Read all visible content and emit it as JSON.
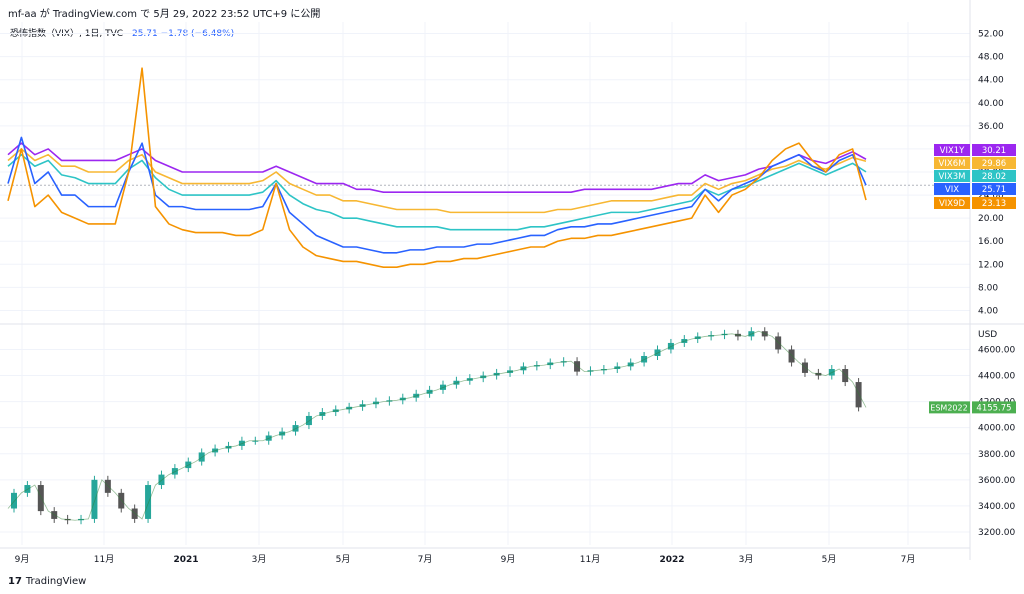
{
  "header": {
    "text": "mf-aa が TradingView.com で 5月 29, 2022 23:52 UTC+9 に公開"
  },
  "legend": {
    "title": "恐怖指数（VIX）, 1日, TVC",
    "values": "25.71  −1.78 (−6.48%)"
  },
  "footer": {
    "logo": "17",
    "brand": "TradingView"
  },
  "colors": {
    "VIX1Y": "#9c27f0",
    "VIX6M": "#f7b733",
    "VIX3M": "#2ec4c6",
    "VIX": "#2962ff",
    "VIX9D": "#f59300",
    "ES_up": "#26a69a",
    "ES_down": "#555555",
    "ES_label": "#4caf50"
  },
  "chart_data": [
    {
      "type": "line",
      "title": "恐怖指数（VIX）, 1日, TVC",
      "ylim": [
        2,
        54
      ],
      "y_ticks": [
        "52.00",
        "48.00",
        "44.00",
        "40.00",
        "36.00",
        "32.00",
        "28.00",
        "24.00",
        "20.00",
        "16.00",
        "12.00",
        "8.00",
        "4.00"
      ],
      "x": [
        0,
        10,
        20,
        30,
        40,
        50,
        60,
        70,
        80,
        90,
        100,
        110,
        120,
        130,
        140,
        150,
        160,
        170,
        180,
        190,
        200,
        210,
        220,
        230,
        240,
        250,
        260,
        270,
        280,
        290,
        300,
        310,
        320,
        330,
        340,
        350,
        360,
        370,
        380,
        390,
        400,
        410,
        420,
        430,
        440,
        450,
        460,
        470,
        480,
        490,
        500,
        510,
        520,
        530,
        540,
        550,
        560,
        570,
        580,
        590,
        600,
        610,
        620,
        630,
        640
      ],
      "series": [
        {
          "name": "VIX1Y",
          "last": "30.21",
          "values": [
            31,
            33,
            31,
            32,
            30,
            30,
            30,
            30,
            30,
            31,
            32,
            30,
            29,
            28,
            28,
            28,
            28,
            28,
            28,
            28,
            29,
            28,
            27,
            26,
            26,
            26,
            25,
            25,
            24.5,
            24.5,
            24.5,
            24.5,
            24.5,
            24.5,
            24.5,
            24.5,
            24.5,
            24.5,
            24.5,
            24.5,
            24.5,
            24.5,
            24.5,
            25,
            25,
            25,
            25,
            25,
            25,
            25.5,
            26,
            26,
            27.5,
            26.5,
            27,
            27.5,
            28.5,
            29,
            30,
            31,
            30,
            29.5,
            30.5,
            31.5,
            30.21
          ]
        },
        {
          "name": "VIX6M",
          "last": "29.86",
          "values": [
            30,
            32,
            30,
            31,
            29,
            29,
            28,
            28,
            28,
            30,
            31,
            28,
            27,
            26,
            26,
            26,
            26,
            26,
            26,
            26.5,
            28,
            26,
            25,
            24,
            24,
            23,
            23,
            22.5,
            22,
            21.5,
            21.5,
            21.5,
            21.5,
            21,
            21,
            21,
            21,
            21,
            21,
            21,
            21,
            21.5,
            21.5,
            22,
            22.5,
            23,
            23,
            23,
            23,
            23.5,
            24,
            24,
            26,
            25,
            26,
            26.5,
            27.5,
            28.5,
            29,
            30,
            29,
            28.5,
            29.5,
            30.5,
            29.86
          ]
        },
        {
          "name": "VIX3M",
          "last": "28.02",
          "values": [
            29,
            31,
            29,
            30,
            27.5,
            27,
            26,
            26,
            26,
            28.5,
            30,
            27,
            25,
            24,
            24,
            24,
            24,
            24,
            24,
            24.5,
            26.5,
            24,
            22.5,
            21.5,
            21,
            20,
            20,
            19.5,
            19,
            18.5,
            18.5,
            18.5,
            18.5,
            18,
            18,
            18,
            18,
            18,
            18,
            18.5,
            18.5,
            19,
            19.5,
            20,
            20.5,
            21,
            21,
            21,
            21.5,
            22,
            22.5,
            23,
            25,
            24,
            25,
            25.5,
            26.5,
            27.5,
            28.5,
            29.5,
            28.5,
            27.5,
            28.5,
            29.5,
            28.02
          ]
        },
        {
          "name": "VIX",
          "last": "25.71",
          "values": [
            26,
            34,
            26,
            28,
            24,
            24,
            22,
            22,
            22,
            28,
            33,
            24,
            22,
            22,
            21.5,
            21.5,
            21.5,
            21.5,
            21.5,
            22,
            26,
            21,
            19,
            17,
            16,
            15,
            15,
            14.5,
            14,
            14,
            14.5,
            14.5,
            15,
            15,
            15,
            15.5,
            15.5,
            16,
            16.5,
            17,
            17,
            18,
            18.5,
            18.5,
            19,
            19,
            19.5,
            20,
            20.5,
            21,
            21.5,
            22,
            25,
            23,
            25,
            26,
            27,
            29,
            30,
            31,
            29,
            28,
            30,
            31,
            25.71
          ]
        },
        {
          "name": "VIX9D",
          "last": "23.13",
          "values": [
            23,
            32,
            22,
            24,
            21,
            20,
            19,
            19,
            19,
            28,
            46,
            22,
            19,
            18,
            17.5,
            17.5,
            17.5,
            17,
            17,
            18,
            26,
            18,
            15,
            13.5,
            13,
            12.5,
            12.5,
            12,
            11.5,
            11.5,
            12,
            12,
            12.5,
            12.5,
            13,
            13,
            13.5,
            14,
            14.5,
            15,
            15,
            16,
            16.5,
            16.5,
            17,
            17,
            17.5,
            18,
            18.5,
            19,
            19.5,
            20,
            24,
            21,
            24,
            25,
            27,
            30,
            32,
            33,
            30,
            28,
            31,
            32,
            23.13
          ]
        }
      ]
    },
    {
      "type": "line",
      "title": "ESM2022",
      "last": "4155.75",
      "unit_label": "USD",
      "ylim": [
        3100,
        4780
      ],
      "y_ticks": [
        "4600.00",
        "4400.00",
        "4200.00",
        "4000.00",
        "3800.00",
        "3600.00",
        "3400.00",
        "3200.00"
      ],
      "x": [
        0,
        10,
        20,
        30,
        40,
        50,
        60,
        70,
        80,
        90,
        100,
        110,
        120,
        130,
        140,
        150,
        160,
        170,
        180,
        190,
        200,
        210,
        220,
        230,
        240,
        250,
        260,
        270,
        280,
        290,
        300,
        310,
        320,
        330,
        340,
        350,
        360,
        370,
        380,
        390,
        400,
        410,
        420,
        430,
        440,
        450,
        460,
        470,
        480,
        490,
        500,
        510,
        520,
        530,
        540,
        550,
        560,
        570,
        580,
        590,
        600,
        610,
        620,
        630,
        640
      ],
      "values": [
        3380,
        3500,
        3560,
        3360,
        3300,
        3290,
        3300,
        3600,
        3500,
        3380,
        3300,
        3560,
        3640,
        3690,
        3740,
        3810,
        3840,
        3860,
        3900,
        3900,
        3940,
        3970,
        4020,
        4090,
        4120,
        4140,
        4160,
        4180,
        4200,
        4210,
        4230,
        4260,
        4290,
        4330,
        4360,
        4380,
        4400,
        4420,
        4440,
        4470,
        4480,
        4500,
        4510,
        4430,
        4440,
        4450,
        4470,
        4500,
        4550,
        4600,
        4650,
        4680,
        4700,
        4710,
        4720,
        4700,
        4740,
        4700,
        4600,
        4500,
        4420,
        4400,
        4450,
        4350,
        4155.75
      ],
      "x_labels": [
        "9月",
        "11月",
        "2021",
        "3月",
        "5月",
        "7月",
        "9月",
        "11月",
        "2022",
        "3月",
        "5月",
        "7月"
      ]
    }
  ]
}
